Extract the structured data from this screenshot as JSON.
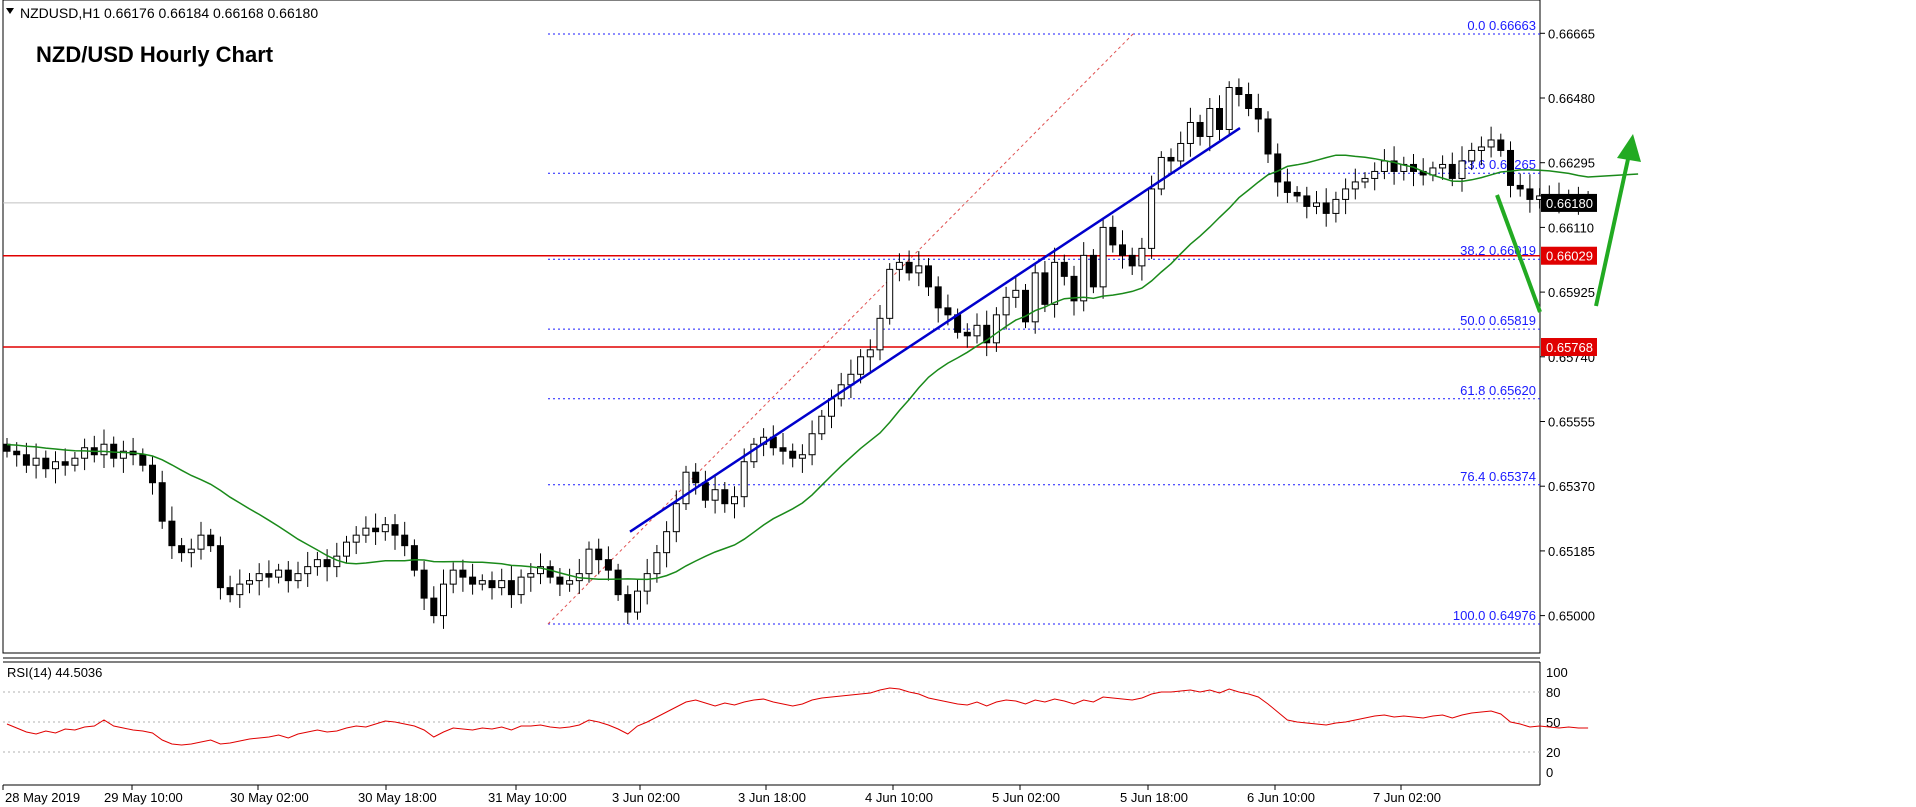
{
  "header": {
    "symbol_info": "NZDUSD,H1  0.66176 0.66184 0.66168 0.66180",
    "chart_title": "NZD/USD Hourly Chart"
  },
  "indicator": {
    "label": "RSI(14) 44.5036",
    "levels": [
      "100",
      "80",
      "50",
      "20",
      "0"
    ]
  },
  "colors": {
    "bull_candle": "#ffffff",
    "bear_candle": "#000000",
    "ma": "#1a8a1a",
    "trendline": "#0000cc",
    "support": "#e00000",
    "fib": "#1a1aff",
    "arrows": "#22aa22",
    "rsi": "#e00000"
  },
  "chart_data": {
    "type": "candlestick",
    "timeframe": "H1",
    "ylim": [
      0.6493,
      0.667
    ],
    "y_ticks": [
      "0.66665",
      "0.66480",
      "0.66295",
      "0.66110",
      "0.65925",
      "0.65740",
      "0.65555",
      "0.65370",
      "0.65185",
      "0.65000"
    ],
    "x_ticks": [
      "28 May 2019",
      "29 May 10:00",
      "30 May 02:00",
      "30 May 18:00",
      "31 May 10:00",
      "3 Jun 02:00",
      "3 Jun 18:00",
      "4 Jun 10:00",
      "5 Jun 02:00",
      "5 Jun 18:00",
      "6 Jun 10:00",
      "7 Jun 02:00"
    ],
    "price_tags": [
      {
        "value": 0.6618,
        "label": "0.66180",
        "style": "current"
      },
      {
        "value": 0.66029,
        "label": "0.66029",
        "style": "support"
      },
      {
        "value": 0.65768,
        "label": "0.65768",
        "style": "support"
      }
    ],
    "support_levels": [
      0.66029,
      0.65768
    ],
    "fibonacci": [
      {
        "label": "0.0 0.66663",
        "value": 0.66663
      },
      {
        "label": "23.6 0.66265",
        "value": 0.66265
      },
      {
        "label": "38.2 0.66019",
        "value": 0.66019
      },
      {
        "label": "50.0 0.65819",
        "value": 0.65819
      },
      {
        "label": "61.8 0.65620",
        "value": 0.6562
      },
      {
        "label": "76.4 0.65374",
        "value": 0.65374
      },
      {
        "label": "100.0 0.64976",
        "value": 0.64976
      }
    ],
    "candles_close": [
      0.6547,
      0.6546,
      0.6543,
      0.6545,
      0.6542,
      0.6544,
      0.6543,
      0.6545,
      0.6548,
      0.6546,
      0.6549,
      0.6545,
      0.6547,
      0.6546,
      0.6543,
      0.6538,
      0.6527,
      0.652,
      0.6518,
      0.6519,
      0.6523,
      0.652,
      0.6508,
      0.6506,
      0.6509,
      0.651,
      0.6512,
      0.6511,
      0.6513,
      0.651,
      0.6512,
      0.6514,
      0.6516,
      0.6514,
      0.6517,
      0.6521,
      0.6523,
      0.6525,
      0.6524,
      0.6526,
      0.6523,
      0.652,
      0.6513,
      0.6505,
      0.65,
      0.6509,
      0.6513,
      0.6511,
      0.6509,
      0.651,
      0.6508,
      0.651,
      0.6506,
      0.6511,
      0.6512,
      0.6514,
      0.6511,
      0.6509,
      0.651,
      0.6512,
      0.6519,
      0.6516,
      0.6513,
      0.6506,
      0.6501,
      0.6507,
      0.6512,
      0.6518,
      0.6524,
      0.6532,
      0.6541,
      0.6538,
      0.6533,
      0.6536,
      0.6532,
      0.6534,
      0.6544,
      0.6549,
      0.6551,
      0.6548,
      0.6547,
      0.6545,
      0.6546,
      0.6552,
      0.6557,
      0.6562,
      0.6566,
      0.6569,
      0.6574,
      0.6576,
      0.6585,
      0.6599,
      0.6601,
      0.6598,
      0.66,
      0.6594,
      0.6588,
      0.6586,
      0.6581,
      0.658,
      0.6583,
      0.6578,
      0.6586,
      0.6591,
      0.6593,
      0.6584,
      0.6598,
      0.6589,
      0.6601,
      0.6597,
      0.659,
      0.6603,
      0.6594,
      0.6611,
      0.6606,
      0.6603,
      0.66,
      0.6605,
      0.6622,
      0.6631,
      0.663,
      0.6635,
      0.6641,
      0.6637,
      0.6645,
      0.6639,
      0.6651,
      0.6649,
      0.6645,
      0.6642,
      0.6632,
      0.6624,
      0.6621,
      0.662,
      0.6617,
      0.6618,
      0.6615,
      0.6619,
      0.6622,
      0.6624,
      0.6625,
      0.6627,
      0.663,
      0.6627,
      0.6629,
      0.6627,
      0.6626,
      0.6628,
      0.6629,
      0.6625,
      0.663,
      0.6633,
      0.6634,
      0.6636,
      0.6633,
      0.6623,
      0.6622,
      0.6619,
      0.662,
      0.662,
      0.6618,
      0.662,
      0.6618,
      0.6618
    ],
    "ma_period_label": "",
    "rsi": {
      "label": "RSI(14) 44.5036",
      "ylim": [
        0,
        100
      ],
      "levels": [
        20,
        50,
        80
      ],
      "values": [
        48,
        44,
        40,
        38,
        41,
        39,
        43,
        42,
        45,
        46,
        52,
        46,
        44,
        42,
        41,
        39,
        32,
        28,
        27,
        28,
        30,
        32,
        28,
        29,
        31,
        33,
        34,
        35,
        37,
        34,
        38,
        40,
        42,
        40,
        41,
        44,
        46,
        45,
        48,
        51,
        50,
        48,
        46,
        42,
        35,
        40,
        44,
        43,
        42,
        44,
        43,
        45,
        42,
        46,
        46,
        47,
        45,
        44,
        45,
        47,
        52,
        50,
        47,
        43,
        38,
        46,
        50,
        55,
        60,
        65,
        70,
        72,
        69,
        66,
        69,
        67,
        70,
        72,
        73,
        70,
        68,
        66,
        68,
        72,
        74,
        75,
        76,
        77,
        78,
        79,
        82,
        84,
        83,
        80,
        78,
        74,
        72,
        70,
        68,
        67,
        70,
        66,
        70,
        72,
        71,
        68,
        72,
        70,
        73,
        71,
        68,
        72,
        70,
        75,
        74,
        73,
        72,
        74,
        78,
        80,
        80,
        81,
        82,
        80,
        82,
        79,
        83,
        80,
        78,
        75,
        68,
        60,
        52,
        50,
        49,
        48,
        47,
        49,
        50,
        52,
        54,
        56,
        57,
        55,
        56,
        55,
        54,
        56,
        57,
        54,
        57,
        59,
        60,
        61,
        58,
        50,
        48,
        45,
        46,
        45,
        44,
        45,
        44,
        44
      ]
    },
    "annotations": [
      "ascending-trendline",
      "fib-channel-dashed",
      "down-up-arrows"
    ]
  }
}
